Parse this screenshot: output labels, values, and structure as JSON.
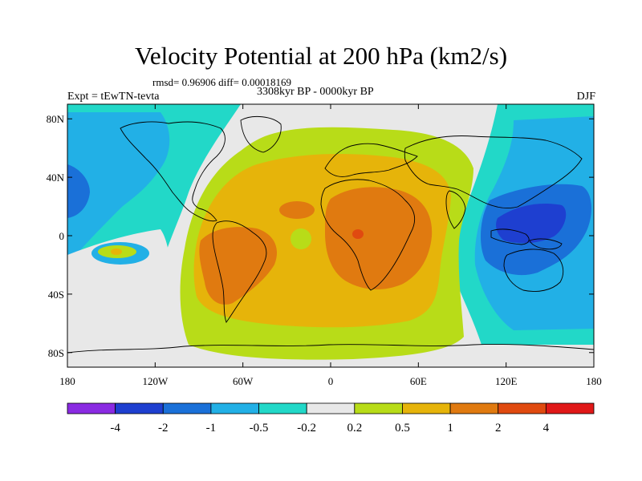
{
  "title": "Velocity Potential at 200 hPa (km2/s)",
  "stats_line": "rmsd= 0.96906 diff= 0.00018169",
  "period_line": "3308kyr BP - 0000kyr BP",
  "experiment_label": "Expt = tEwTN-tevta",
  "season_label": "DJF",
  "x_axis": {
    "range": [
      -180,
      180
    ],
    "tick_labels": [
      "180",
      "120W",
      "60W",
      "0",
      "60E",
      "120E",
      "180"
    ]
  },
  "y_axis": {
    "range": [
      -90,
      90
    ],
    "tick_labels": [
      "80N",
      "40N",
      "0",
      "40S",
      "80S"
    ]
  },
  "colorbar": {
    "labels": [
      "-4",
      "-2",
      "-1",
      "-0.5",
      "-0.2",
      "0.2",
      "0.5",
      "1",
      "2",
      "4"
    ],
    "colors": [
      "#8a2be2",
      "#1e3fd0",
      "#1a70d8",
      "#22b0e6",
      "#22d8c8",
      "#e8e8e8",
      "#b8dc18",
      "#e6b40a",
      "#e07a10",
      "#e04a10",
      "#e01818"
    ]
  },
  "map_colors": {
    "neutral": "#e8e8e8",
    "teal": "#22d8c8",
    "light_blue": "#22b0e6",
    "blue": "#1a70d8",
    "dark_blue": "#1e3fd0",
    "yellow_green": "#b8dc18",
    "gold": "#e6b40a",
    "orange": "#e07a10",
    "red_orange": "#e04a10"
  }
}
